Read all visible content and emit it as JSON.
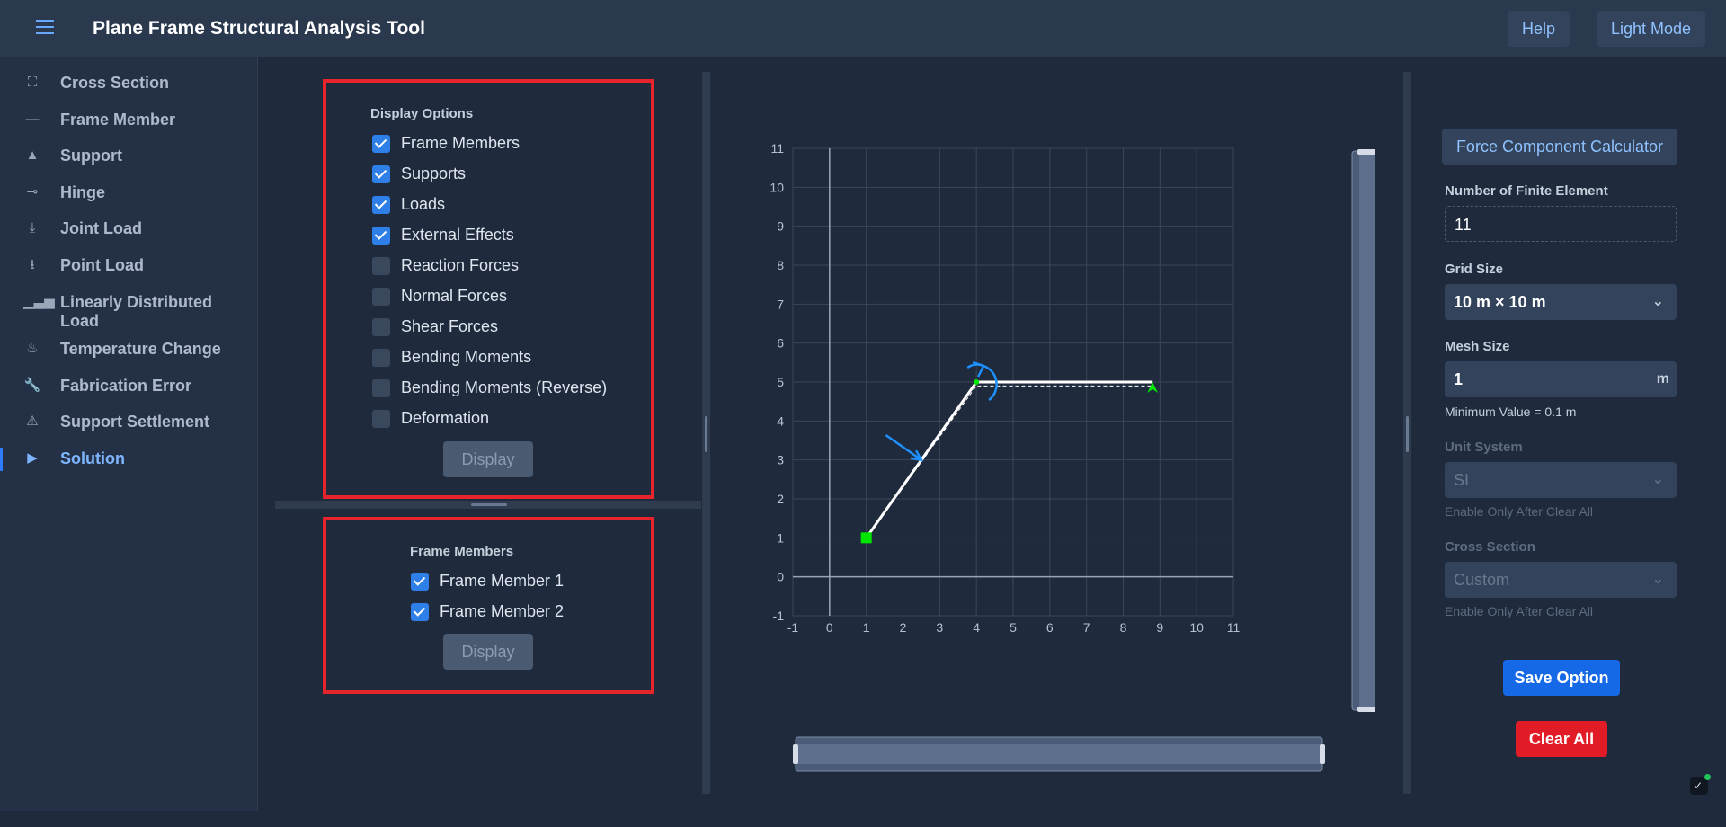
{
  "app": {
    "title": "Plane Frame Structural Analysis Tool",
    "help_label": "Help",
    "mode_label": "Light Mode"
  },
  "sidebar": {
    "items": [
      {
        "label": "Cross Section",
        "icon": "cross-section-icon"
      },
      {
        "label": "Frame Member",
        "icon": "frame-member-icon"
      },
      {
        "label": "Support",
        "icon": "support-icon"
      },
      {
        "label": "Hinge",
        "icon": "hinge-icon"
      },
      {
        "label": "Joint Load",
        "icon": "joint-load-icon"
      },
      {
        "label": "Point Load",
        "icon": "point-load-icon"
      },
      {
        "label": "Linearly Distributed Load",
        "icon": "distributed-load-icon"
      },
      {
        "label": "Temperature Change",
        "icon": "temperature-icon"
      },
      {
        "label": "Fabrication Error",
        "icon": "wrench-icon"
      },
      {
        "label": "Support Settlement",
        "icon": "warning-icon"
      },
      {
        "label": "Solution",
        "icon": "play-icon"
      }
    ],
    "active": "Solution"
  },
  "display_options": {
    "title": "Display Options",
    "options": [
      {
        "label": "Frame Members",
        "checked": true
      },
      {
        "label": "Supports",
        "checked": true
      },
      {
        "label": "Loads",
        "checked": true
      },
      {
        "label": "External Effects",
        "checked": true
      },
      {
        "label": "Reaction Forces",
        "checked": false
      },
      {
        "label": "Normal Forces",
        "checked": false
      },
      {
        "label": "Shear Forces",
        "checked": false
      },
      {
        "label": "Bending Moments",
        "checked": false
      },
      {
        "label": "Bending Moments (Reverse)",
        "checked": false
      },
      {
        "label": "Deformation",
        "checked": false
      }
    ],
    "button_label": "Display"
  },
  "frame_members": {
    "title": "Frame Members",
    "members": [
      {
        "label": "Frame Member 1",
        "checked": true
      },
      {
        "label": "Frame Member 2",
        "checked": true
      }
    ],
    "button_label": "Display"
  },
  "chart_data": {
    "type": "scatter",
    "x_ticks": [
      -1,
      0,
      1,
      2,
      3,
      4,
      5,
      6,
      7,
      8,
      9,
      10,
      11
    ],
    "y_ticks": [
      -1,
      0,
      1,
      2,
      3,
      4,
      5,
      6,
      7,
      8,
      9,
      10,
      11
    ],
    "xlim": [
      -1,
      11
    ],
    "ylim": [
      -1,
      11
    ],
    "grid": true,
    "members": [
      {
        "start": [
          1,
          1
        ],
        "end": [
          4,
          5
        ]
      },
      {
        "start": [
          4,
          5
        ],
        "end": [
          8.8,
          5
        ]
      }
    ],
    "deformed_shape": [
      [
        1,
        1
      ],
      [
        4,
        4.9
      ],
      [
        8.8,
        4.9
      ]
    ],
    "supports": [
      {
        "type": "fixed",
        "at": [
          1,
          1
        ],
        "color": "#00e600"
      },
      {
        "type": "pinned",
        "at": [
          8.8,
          5
        ],
        "color": "#00e600"
      }
    ],
    "hinge": {
      "at": [
        4,
        5
      ],
      "color": "#00e600"
    },
    "loads": [
      {
        "type": "point",
        "at": [
          2.5,
          3
        ],
        "direction_deg": -35,
        "color": "#1e90ff"
      },
      {
        "type": "moment",
        "at": [
          4,
          5
        ],
        "color": "#1e90ff"
      }
    ],
    "colors": {
      "background": "#1f2b3d",
      "grid": "#3b4759",
      "axis": "#9aa5b4",
      "member": "#ffffff"
    }
  },
  "settings": {
    "calculator_label": "Force Component Calculator",
    "finite_elements": {
      "label": "Number of Finite Element",
      "value": "11"
    },
    "grid_size": {
      "label": "Grid Size",
      "value": "10 m × 10 m"
    },
    "mesh_size": {
      "label": "Mesh Size",
      "value": "1",
      "unit": "m",
      "hint": "Minimum Value = 0.1 m"
    },
    "unit_system": {
      "label": "Unit System",
      "value": "SI",
      "hint": "Enable Only After Clear All"
    },
    "cross_section": {
      "label": "Cross Section",
      "value": "Custom",
      "hint": "Enable Only After Clear All"
    },
    "save_label": "Save Option",
    "clear_label": "Clear All"
  }
}
